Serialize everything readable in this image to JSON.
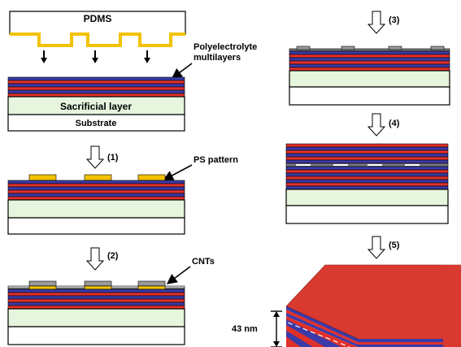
{
  "labels": {
    "pdms": "PDMS",
    "polyelectrolyte_line1": "Polyelectrolyte",
    "polyelectrolyte_line2": "multilayers",
    "sacrificial": "Sacrificial layer",
    "substrate": "Substrate",
    "ps_pattern": "PS pattern",
    "cnts": "CNTs",
    "thickness": "43 nm"
  },
  "steps": [
    "(1)",
    "(2)",
    "(3)",
    "(4)",
    "(5)"
  ],
  "colors": {
    "pdms_coating": "#f2c200",
    "ps_pattern": "#f2c200",
    "red_layer": "#e0302a",
    "blue_layer": "#3a3aa8",
    "sacrificial": "#e6f5dd",
    "substrate": "#ffffff",
    "cnt": "#9a9a9a",
    "outline": "#000000"
  }
}
